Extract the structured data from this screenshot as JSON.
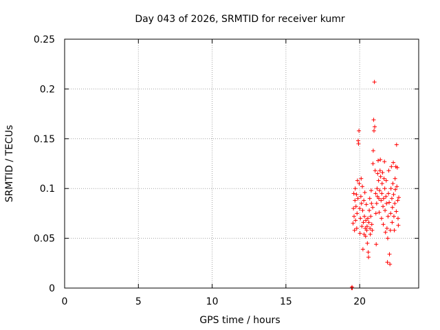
{
  "chart_data": {
    "type": "scatter",
    "title": "Day 043 of 2026, SRMTID for receiver kumr",
    "xlabel": "GPS time / hours",
    "ylabel": "SRMTID / TECUs",
    "xlim": [
      0,
      24
    ],
    "ylim": [
      0,
      0.25
    ],
    "x_ticks": [
      0,
      5,
      10,
      15,
      20
    ],
    "x_tick_labels": [
      "0",
      "5",
      "10",
      "15",
      "20"
    ],
    "y_ticks": [
      0,
      0.05,
      0.1,
      0.15,
      0.2,
      0.25
    ],
    "y_tick_labels": [
      "0",
      "0.05",
      "0.1",
      "0.15",
      "0.2",
      "0.25"
    ],
    "grid": true,
    "marker": "plus",
    "series": [
      {
        "name": "SRMTID",
        "color": "#ff0000",
        "points": [
          [
            19.45,
            0.0
          ],
          [
            19.48,
            0.001
          ],
          [
            19.5,
            0.0
          ],
          [
            19.55,
            0.065
          ],
          [
            19.58,
            0.08
          ],
          [
            19.6,
            0.095
          ],
          [
            19.62,
            0.072
          ],
          [
            19.65,
            0.058
          ],
          [
            19.68,
            0.088
          ],
          [
            19.7,
            0.1
          ],
          [
            19.72,
            0.068
          ],
          [
            19.75,
            0.082
          ],
          [
            19.78,
            0.094
          ],
          [
            19.8,
            0.06
          ],
          [
            19.82,
            0.075
          ],
          [
            19.85,
            0.108
          ],
          [
            19.88,
            0.09
          ],
          [
            19.9,
            0.148
          ],
          [
            19.92,
            0.145
          ],
          [
            19.95,
            0.158
          ],
          [
            19.97,
            0.105
          ],
          [
            20.0,
            0.08
          ],
          [
            20.02,
            0.055
          ],
          [
            20.05,
            0.07
          ],
          [
            20.08,
            0.092
          ],
          [
            20.1,
            0.11
          ],
          [
            20.12,
            0.085
          ],
          [
            20.15,
            0.062
          ],
          [
            20.18,
            0.102
          ],
          [
            20.2,
            0.078
          ],
          [
            20.22,
            0.039
          ],
          [
            20.25,
            0.066
          ],
          [
            20.28,
            0.088
          ],
          [
            20.3,
            0.054
          ],
          [
            20.32,
            0.072
          ],
          [
            20.35,
            0.096
          ],
          [
            20.38,
            0.06
          ],
          [
            20.4,
            0.052
          ],
          [
            20.42,
            0.068
          ],
          [
            20.45,
            0.084
          ],
          [
            20.48,
            0.058
          ],
          [
            20.5,
            0.062
          ],
          [
            20.52,
            0.045
          ],
          [
            20.55,
            0.07
          ],
          [
            20.58,
            0.036
          ],
          [
            20.6,
            0.031
          ],
          [
            20.62,
            0.066
          ],
          [
            20.65,
            0.078
          ],
          [
            20.68,
            0.09
          ],
          [
            20.7,
            0.06
          ],
          [
            20.72,
            0.054
          ],
          [
            20.75,
            0.072
          ],
          [
            20.78,
            0.098
          ],
          [
            20.8,
            0.085
          ],
          [
            20.82,
            0.064
          ],
          [
            20.85,
            0.058
          ],
          [
            20.88,
            0.081
          ],
          [
            20.9,
            0.125
          ],
          [
            20.92,
            0.138
          ],
          [
            20.95,
            0.169
          ],
          [
            20.97,
            0.158
          ],
          [
            21.0,
            0.207
          ],
          [
            21.02,
            0.162
          ],
          [
            21.05,
            0.118
          ],
          [
            21.08,
            0.095
          ],
          [
            21.1,
            0.075
          ],
          [
            21.12,
            0.044
          ],
          [
            21.15,
            0.085
          ],
          [
            21.18,
            0.1
          ],
          [
            21.2,
            0.092
          ],
          [
            21.22,
            0.115
          ],
          [
            21.25,
            0.128
          ],
          [
            21.28,
            0.108
          ],
          [
            21.3,
            0.09
          ],
          [
            21.32,
            0.076
          ],
          [
            21.35,
            0.098
          ],
          [
            21.38,
            0.118
          ],
          [
            21.4,
            0.129
          ],
          [
            21.42,
            0.112
          ],
          [
            21.45,
            0.088
          ],
          [
            21.48,
            0.07
          ],
          [
            21.5,
            0.095
          ],
          [
            21.52,
            0.105
          ],
          [
            21.55,
            0.116
          ],
          [
            21.58,
            0.082
          ],
          [
            21.6,
            0.064
          ],
          [
            21.62,
            0.09
          ],
          [
            21.65,
            0.11
          ],
          [
            21.68,
            0.127
          ],
          [
            21.7,
            0.1
          ],
          [
            21.72,
            0.078
          ],
          [
            21.75,
            0.056
          ],
          [
            21.78,
            0.092
          ],
          [
            21.8,
            0.108
          ],
          [
            21.82,
            0.085
          ],
          [
            21.85,
            0.06
          ],
          [
            21.88,
            0.026
          ],
          [
            21.9,
            0.05
          ],
          [
            21.92,
            0.072
          ],
          [
            21.95,
            0.095
          ],
          [
            21.97,
            0.118
          ],
          [
            22.0,
            0.086
          ],
          [
            22.02,
            0.034
          ],
          [
            22.05,
            0.024
          ],
          [
            22.08,
            0.058
          ],
          [
            22.1,
            0.075
          ],
          [
            22.12,
            0.1
          ],
          [
            22.15,
            0.122
          ],
          [
            22.18,
            0.09
          ],
          [
            22.2,
            0.066
          ],
          [
            22.22,
            0.081
          ],
          [
            22.25,
            0.105
          ],
          [
            22.28,
            0.126
          ],
          [
            22.3,
            0.094
          ],
          [
            22.32,
            0.072
          ],
          [
            22.35,
            0.058
          ],
          [
            22.38,
            0.085
          ],
          [
            22.4,
            0.11
          ],
          [
            22.42,
            0.099
          ],
          [
            22.45,
            0.122
          ],
          [
            22.48,
            0.077
          ],
          [
            22.5,
            0.144
          ],
          [
            22.52,
            0.102
          ],
          [
            22.55,
            0.121
          ],
          [
            22.58,
            0.088
          ],
          [
            22.6,
            0.07
          ],
          [
            22.62,
            0.063
          ],
          [
            22.65,
            0.091
          ]
        ]
      }
    ]
  }
}
